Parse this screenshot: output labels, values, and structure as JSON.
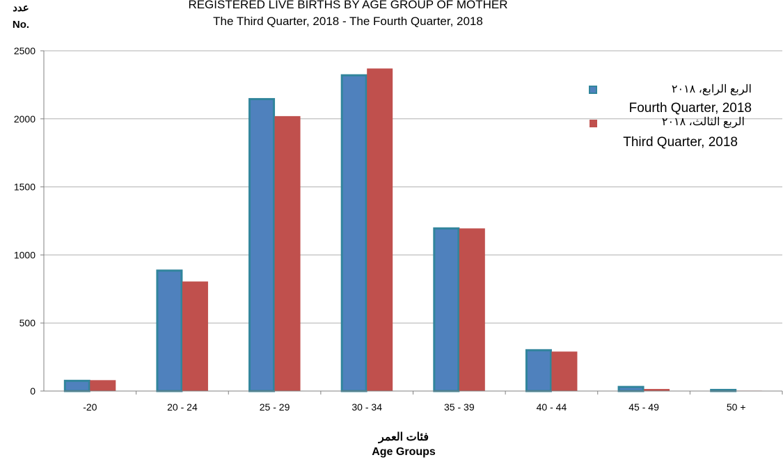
{
  "chart_data": {
    "type": "bar",
    "title": "REGISTERED LIVE BIRTHS BY AGE GROUP OF MOTHER",
    "subtitle": "The Third Quarter, 2018 -  The Fourth Quarter, 2018",
    "ylabel_ar": "عدد",
    "ylabel": "No.",
    "xlabel_ar": "فئات العمر",
    "xlabel": "Age Groups",
    "categories": [
      "-20",
      "20 - 24",
      "25 - 29",
      "30 - 34",
      "35 - 39",
      "40 - 44",
      "45 - 49",
      "50 +"
    ],
    "ylim": [
      0,
      2500
    ],
    "yticks": [
      "0",
      "500",
      "1000",
      "1500",
      "2000",
      "2500"
    ],
    "grid": true,
    "legend_position": "top-right",
    "series": [
      {
        "name_ar": "الربع الرابع، ٢٠١٨",
        "name": "Fourth Quarter, 2018",
        "color": "#4f81bd",
        "border": "#31859c",
        "values": [
          75,
          885,
          2145,
          2320,
          1195,
          300,
          30,
          8
        ]
      },
      {
        "name_ar": "الربع الثالث، ٢٠١٨",
        "name": "Third Quarter, 2018",
        "color": "#c0504d",
        "values": [
          80,
          805,
          2020,
          2370,
          1195,
          290,
          15,
          3
        ]
      }
    ]
  }
}
